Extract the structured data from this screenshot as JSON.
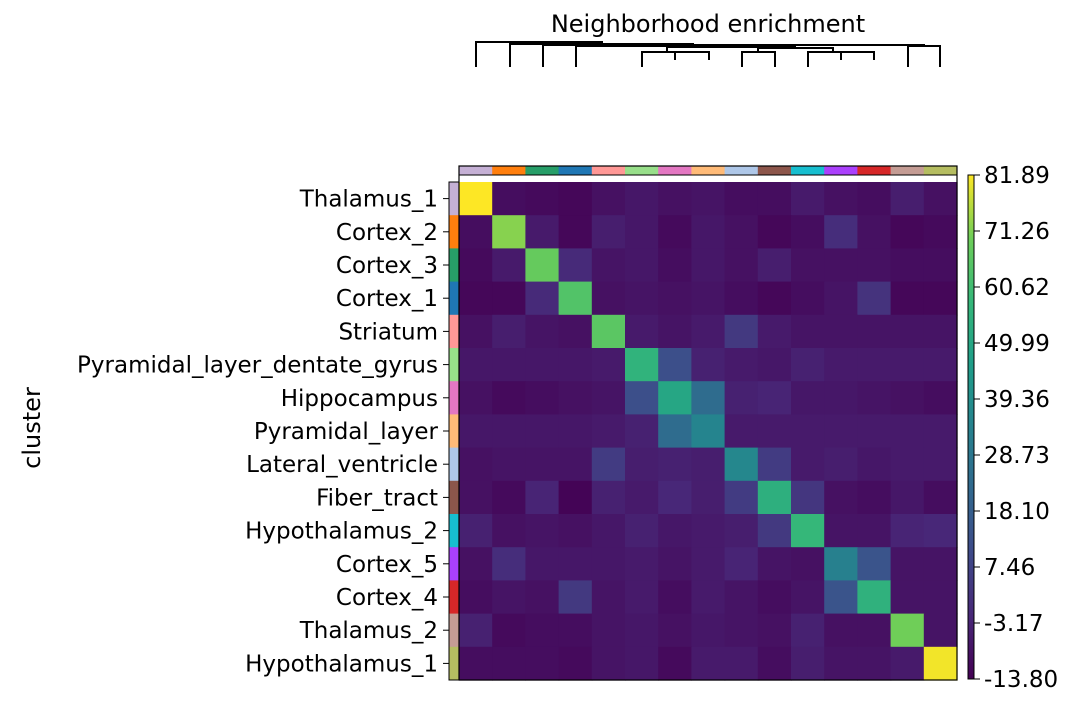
{
  "chart_data": {
    "type": "heatmap",
    "title": "Neighborhood enrichment",
    "ylabel": "cluster",
    "rows": [
      "Thalamus_1",
      "Cortex_2",
      "Cortex_3",
      "Cortex_1",
      "Striatum",
      "Pyramidal_layer_dentate_gyrus",
      "Hippocampus",
      "Pyramidal_layer",
      "Lateral_ventricle",
      "Fiber_tract",
      "Hypothalamus_2",
      "Cortex_5",
      "Cortex_4",
      "Thalamus_2",
      "Hypothalamus_1"
    ],
    "category_colors": [
      "#c5b0d5",
      "#ff7f0e",
      "#279e68",
      "#1f77b4",
      "#ff9896",
      "#98df8a",
      "#e377c2",
      "#ffbb78",
      "#aec7e8",
      "#8c564b",
      "#17becf",
      "#aa40fc",
      "#d62728",
      "#c49c94",
      "#b5bd61"
    ],
    "colorscale": "viridis",
    "colorbar_ticks": [
      "81.89",
      "71.26",
      "60.62",
      "49.99",
      "39.36",
      "28.73",
      "18.10",
      "7.46",
      "-3.17",
      "-13.80"
    ],
    "zmin": -13.8,
    "zmax": 81.89,
    "grid": false,
    "dendrogram_position": "top",
    "values": [
      [
        81.9,
        -10,
        -11,
        -12,
        -9,
        -7,
        -9,
        -8,
        -10,
        -10,
        -6,
        -9,
        -10,
        -5,
        -9
      ],
      [
        -10,
        72,
        -6,
        -12,
        -5,
        -7,
        -11,
        -7,
        -9,
        -12,
        -10,
        0,
        -9,
        -12,
        -11
      ],
      [
        -11,
        -6,
        68,
        -1,
        -8,
        -7,
        -10,
        -7,
        -9,
        -5,
        -9,
        -9,
        -9,
        -10,
        -10
      ],
      [
        -12,
        -12,
        -1,
        64,
        -9,
        -8,
        -9,
        -8,
        -10,
        -12,
        -10,
        -8,
        2,
        -12,
        -12
      ],
      [
        -9,
        -5,
        -8,
        -9,
        66,
        -6,
        -8,
        -6,
        4,
        -6,
        -8,
        -8,
        -8,
        -8,
        -8
      ],
      [
        -7,
        -7,
        -7,
        -7,
        -6,
        56,
        12,
        -4,
        -6,
        -7,
        -4,
        -6,
        -6,
        -6,
        -6
      ],
      [
        -9,
        -11,
        -10,
        -9,
        -8,
        12,
        50,
        24,
        -4,
        -3,
        -7,
        -7,
        -8,
        -9,
        -10
      ],
      [
        -7,
        -7,
        -7,
        -7,
        -6,
        -4,
        24,
        35,
        -6,
        -6,
        -6,
        -6,
        -6,
        -6,
        -6
      ],
      [
        -9,
        -8,
        -8,
        -8,
        5,
        -5,
        -4,
        -5,
        36,
        5,
        -6,
        -5,
        -7,
        -6,
        -6
      ],
      [
        -9,
        -11,
        -3,
        -13,
        -4,
        -6,
        -2,
        -5,
        5,
        54,
        3,
        -9,
        -10,
        -7,
        -10
      ],
      [
        -4,
        -9,
        -8,
        -9,
        -7,
        -4,
        -7,
        -6,
        -5,
        4,
        58,
        -8,
        -8,
        -3,
        -2
      ],
      [
        -9,
        0,
        -7,
        -7,
        -7,
        -6,
        -8,
        -6,
        -3,
        -8,
        -9,
        33,
        14,
        -8,
        -8
      ],
      [
        -10,
        -8,
        -9,
        4,
        -8,
        -6,
        -10,
        -6,
        -8,
        -10,
        -8,
        14,
        55,
        -8,
        -8
      ],
      [
        -4,
        -11,
        -10,
        -10,
        -8,
        -7,
        -9,
        -7,
        -8,
        -9,
        -4,
        -9,
        -9,
        70,
        -8
      ],
      [
        -10,
        -10,
        -10,
        -11,
        -8,
        -7,
        -11,
        -6,
        -6,
        -10,
        -5,
        -8,
        -8,
        -6,
        81
      ]
    ]
  }
}
